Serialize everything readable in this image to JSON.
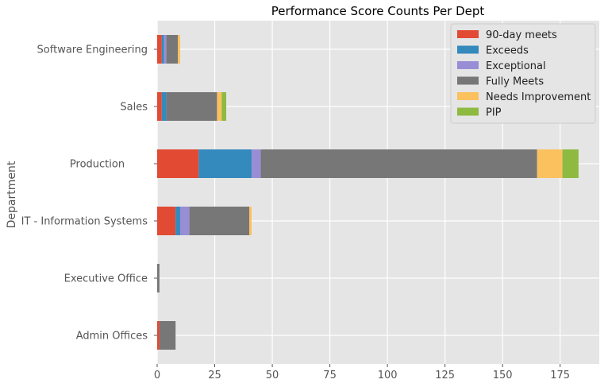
{
  "chart_data": {
    "type": "bar",
    "orientation": "horizontal",
    "stacked": true,
    "title": "Performance Score Counts Per Dept",
    "xlabel": "",
    "ylabel": "Department",
    "xlim": [
      0,
      192
    ],
    "xticks": [
      0,
      25,
      50,
      75,
      100,
      125,
      150,
      175
    ],
    "grid": true,
    "legend_position": "top-right",
    "categories": [
      "Admin Offices",
      "Executive Office",
      "IT - Information Systems",
      "Production       ",
      "Sales",
      "Software Engineering"
    ],
    "series": [
      {
        "name": "90-day meets",
        "color": "#e24a33",
        "values": [
          1,
          0,
          8,
          18,
          2,
          2
        ]
      },
      {
        "name": "Exceeds",
        "color": "#348abd",
        "values": [
          0,
          0,
          2,
          23,
          2,
          1
        ]
      },
      {
        "name": "Exceptional",
        "color": "#988ed5",
        "values": [
          0,
          0,
          4,
          4,
          0,
          1
        ]
      },
      {
        "name": "Fully Meets",
        "color": "#777777",
        "values": [
          7,
          1,
          26,
          120,
          22,
          5
        ]
      },
      {
        "name": "Needs Improvement",
        "color": "#fbc15e",
        "values": [
          0,
          0,
          1,
          11,
          2,
          1
        ]
      },
      {
        "name": "PIP",
        "color": "#8eba42",
        "values": [
          0,
          0,
          0,
          7,
          2,
          0
        ]
      }
    ]
  }
}
